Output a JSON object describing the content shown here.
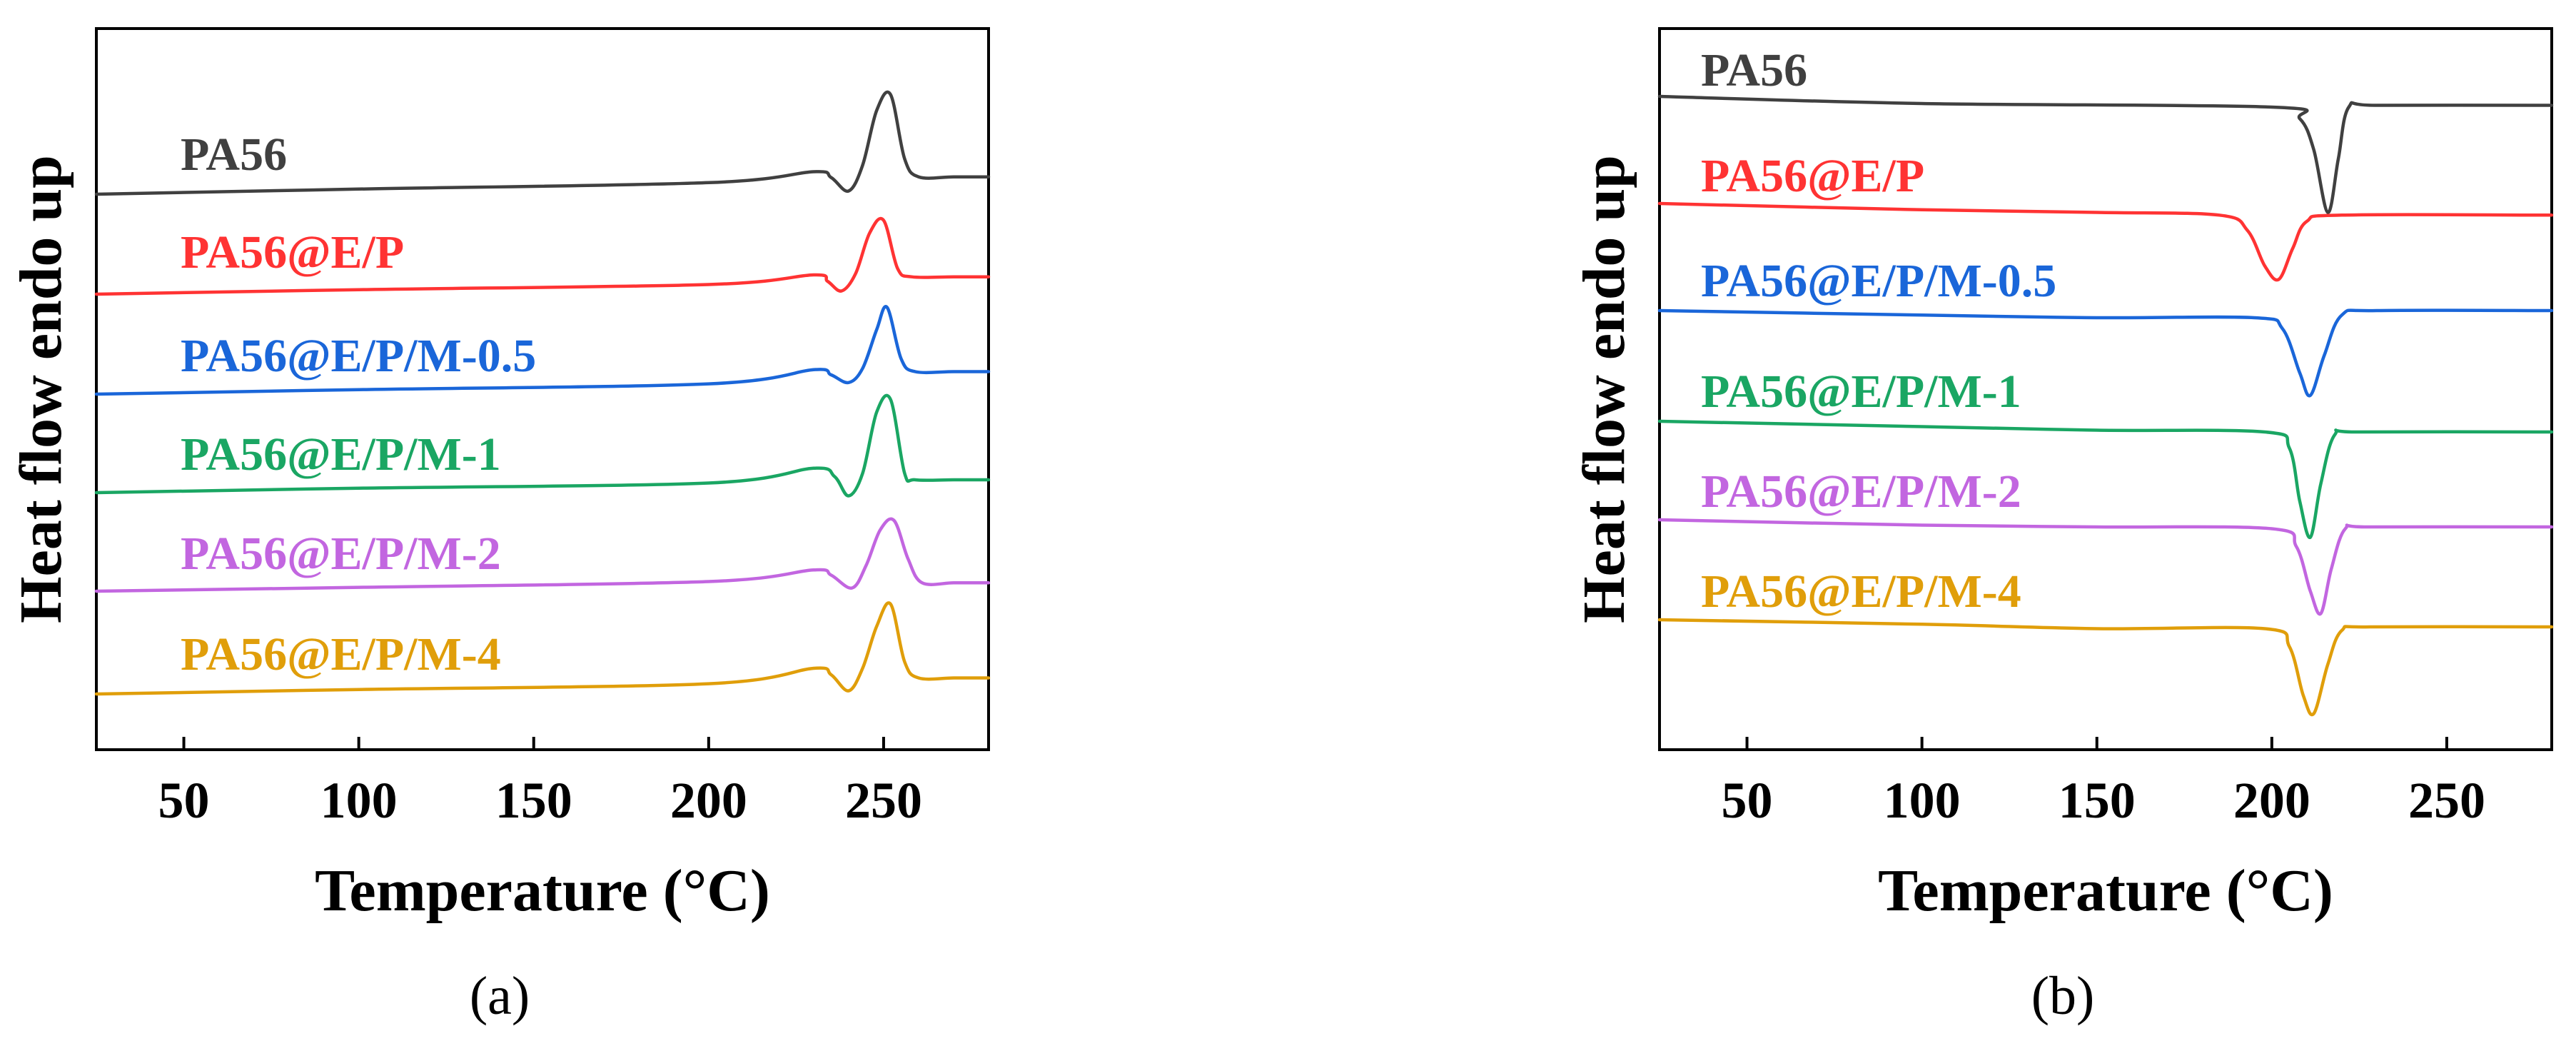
{
  "chart_data": [
    {
      "panel": "a",
      "type": "line",
      "caption": "(a)",
      "xlabel": "Temperature (°C)",
      "ylabel": "Heat flow endo up",
      "xlim": [
        25,
        280
      ],
      "xticks": [
        50,
        100,
        150,
        200,
        250
      ],
      "tick_labels": [
        "50",
        "100",
        "150",
        "200",
        "250"
      ],
      "yticks": false,
      "curve_kind": "melting-peak",
      "series": [
        {
          "name": "PA56",
          "color": "#404040",
          "x": [
            25,
            100,
            200,
            230,
            235,
            240,
            244,
            248,
            252,
            256,
            260,
            270,
            280
          ],
          "y": [
            0.0,
            0.08,
            0.18,
            0.35,
            0.26,
            0.05,
            0.45,
            1.3,
            1.55,
            0.55,
            0.27,
            0.27,
            0.27
          ]
        },
        {
          "name": "PA56@E/P",
          "color": "#ff3333",
          "x": [
            25,
            100,
            200,
            230,
            234,
            238,
            242,
            246,
            250,
            254,
            258,
            270,
            280
          ],
          "y": [
            0.0,
            0.07,
            0.15,
            0.3,
            0.2,
            0.05,
            0.32,
            0.95,
            1.15,
            0.4,
            0.27,
            0.27,
            0.27
          ]
        },
        {
          "name": "PA56@E/P/M-0.5",
          "color": "#1a66d9",
          "x": [
            25,
            100,
            200,
            230,
            235,
            240,
            244,
            248,
            251,
            255,
            259,
            270,
            280
          ],
          "y": [
            0.0,
            0.07,
            0.16,
            0.38,
            0.3,
            0.18,
            0.4,
            1.0,
            1.35,
            0.55,
            0.35,
            0.35,
            0.35
          ]
        },
        {
          "name": "PA56@E/P/M-1",
          "color": "#1aa663",
          "x": [
            25,
            100,
            200,
            230,
            236,
            240,
            244,
            248,
            252,
            256,
            259,
            270,
            280
          ],
          "y": [
            0.0,
            0.07,
            0.15,
            0.38,
            0.25,
            -0.05,
            0.3,
            1.25,
            1.45,
            0.3,
            0.2,
            0.2,
            0.2
          ]
        },
        {
          "name": "PA56@E/P/M-2",
          "color": "#c266e0",
          "x": [
            25,
            100,
            200,
            230,
            235,
            241,
            245,
            249,
            253,
            257,
            261,
            270,
            280
          ],
          "y": [
            0.0,
            0.06,
            0.15,
            0.33,
            0.25,
            0.05,
            0.4,
            0.95,
            1.1,
            0.5,
            0.13,
            0.13,
            0.13
          ]
        },
        {
          "name": "PA56@E/P/M-4",
          "color": "#e09e0a",
          "x": [
            25,
            100,
            200,
            230,
            235,
            240,
            244,
            248,
            252,
            256,
            260,
            270,
            280
          ],
          "y": [
            0.0,
            0.07,
            0.16,
            0.4,
            0.3,
            0.05,
            0.4,
            1.05,
            1.4,
            0.5,
            0.25,
            0.25,
            0.25
          ]
        }
      ]
    },
    {
      "panel": "b",
      "type": "line",
      "caption": "(b)",
      "xlabel": "Temperature (°C)",
      "ylabel": "Heat flow endo up",
      "xlim": [
        25,
        280
      ],
      "xticks": [
        50,
        100,
        150,
        200,
        250
      ],
      "tick_labels": [
        "50",
        "100",
        "150",
        "200",
        "250"
      ],
      "yticks": false,
      "curve_kind": "crystallization-valley",
      "series": [
        {
          "name": "PA56",
          "color": "#404040",
          "x": [
            25,
            100,
            200,
            208,
            212,
            216,
            219,
            222,
            230,
            280
          ],
          "y": [
            0.0,
            -0.08,
            -0.12,
            -0.25,
            -0.6,
            -1.3,
            -0.7,
            -0.12,
            -0.1,
            -0.1
          ]
        },
        {
          "name": "PA56@E/P",
          "color": "#ff3333",
          "x": [
            25,
            100,
            150,
            185,
            193,
            198,
            202,
            206,
            210,
            220,
            280
          ],
          "y": [
            0.0,
            -0.07,
            -0.1,
            -0.13,
            -0.3,
            -0.7,
            -0.85,
            -0.5,
            -0.2,
            -0.13,
            -0.13
          ]
        },
        {
          "name": "PA56@E/P/M-0.5",
          "color": "#1a66d9",
          "x": [
            25,
            100,
            150,
            195,
            203,
            208,
            211,
            215,
            220,
            230,
            280
          ],
          "y": [
            0.0,
            -0.05,
            -0.08,
            -0.08,
            -0.2,
            -0.7,
            -0.95,
            -0.5,
            -0.05,
            0.0,
            0.0
          ]
        },
        {
          "name": "PA56@E/P/M-1",
          "color": "#1aa663",
          "x": [
            25,
            100,
            150,
            198,
            205,
            208,
            211,
            214,
            218,
            225,
            280
          ],
          "y": [
            0.0,
            -0.06,
            -0.1,
            -0.12,
            -0.3,
            -0.9,
            -1.3,
            -0.7,
            -0.15,
            -0.12,
            -0.12
          ]
        },
        {
          "name": "PA56@E/P/M-2",
          "color": "#c266e0",
          "x": [
            25,
            100,
            150,
            200,
            207,
            211,
            214,
            217,
            221,
            228,
            280
          ],
          "y": [
            0.0,
            -0.06,
            -0.08,
            -0.1,
            -0.3,
            -0.8,
            -1.05,
            -0.55,
            -0.1,
            -0.08,
            -0.08
          ]
        },
        {
          "name": "PA56@E/P/M-4",
          "color": "#e09e0a",
          "x": [
            25,
            100,
            150,
            198,
            205,
            209,
            212,
            216,
            220,
            228,
            280
          ],
          "y": [
            0.0,
            -0.05,
            -0.1,
            -0.1,
            -0.3,
            -0.85,
            -1.05,
            -0.5,
            -0.12,
            -0.08,
            -0.08
          ]
        }
      ]
    }
  ]
}
